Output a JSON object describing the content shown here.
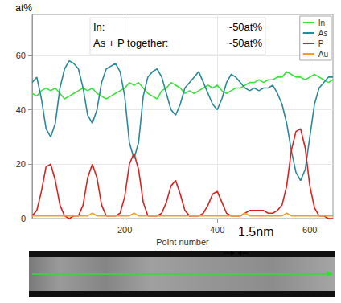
{
  "chart_data": {
    "type": "line",
    "x_label": "Point number",
    "y_label": "at%",
    "x": [
      0,
      10,
      20,
      30,
      40,
      50,
      60,
      70,
      80,
      90,
      100,
      110,
      120,
      130,
      140,
      150,
      160,
      170,
      180,
      190,
      200,
      210,
      220,
      230,
      240,
      250,
      260,
      270,
      280,
      290,
      300,
      310,
      320,
      330,
      340,
      350,
      360,
      370,
      380,
      390,
      400,
      410,
      420,
      430,
      440,
      450,
      460,
      470,
      480,
      490,
      500,
      510,
      520,
      530,
      540,
      550,
      560,
      570,
      580,
      590,
      600,
      610,
      620,
      630,
      640,
      650
    ],
    "series": [
      {
        "name": "In",
        "color": "#3ee03e",
        "values": [
          46,
          45,
          47,
          48,
          47,
          48,
          46,
          44,
          45,
          46,
          47,
          48,
          47,
          48,
          46,
          45,
          44,
          45,
          46,
          47,
          48,
          50,
          49,
          50,
          48,
          46,
          45,
          44,
          47,
          48,
          50,
          49,
          48,
          46,
          47,
          46,
          47,
          48,
          49,
          48,
          49,
          47,
          46,
          47,
          48,
          48,
          49,
          50,
          50,
          51,
          50,
          51,
          51,
          52,
          52,
          54,
          53,
          52,
          52,
          51,
          52,
          53,
          52,
          51,
          50,
          51
        ]
      },
      {
        "name": "As",
        "color": "#2a8a9a",
        "values": [
          50,
          52,
          44,
          33,
          30,
          35,
          48,
          55,
          58,
          57,
          55,
          48,
          38,
          35,
          40,
          50,
          55,
          56,
          57,
          54,
          45,
          28,
          22,
          28,
          45,
          52,
          54,
          55,
          52,
          46,
          40,
          38,
          42,
          48,
          50,
          52,
          54,
          50,
          46,
          42,
          40,
          44,
          50,
          53,
          52,
          50,
          48,
          47,
          48,
          47,
          48,
          48,
          49,
          46,
          42,
          35,
          25,
          17,
          14,
          18,
          30,
          42,
          48,
          50,
          52,
          52
        ]
      },
      {
        "name": "P",
        "color": "#e02020",
        "values": [
          1,
          3,
          10,
          19,
          20,
          14,
          5,
          1,
          0,
          1,
          1,
          5,
          15,
          20,
          15,
          5,
          1,
          1,
          1,
          2,
          8,
          20,
          24,
          18,
          6,
          1,
          1,
          1,
          2,
          6,
          12,
          14,
          9,
          3,
          1,
          1,
          1,
          2,
          5,
          9,
          10,
          6,
          2,
          1,
          1,
          1,
          2,
          3,
          3,
          3,
          3,
          2,
          2,
          3,
          5,
          12,
          25,
          32,
          33,
          26,
          12,
          4,
          1,
          1,
          0,
          0
        ]
      },
      {
        "name": "Au",
        "color": "#f0a020",
        "values": [
          1,
          1,
          1,
          1,
          1,
          1,
          1,
          1,
          1,
          1,
          1,
          1,
          1,
          2,
          1,
          1,
          1,
          1,
          1,
          1,
          1,
          1,
          2,
          1,
          1,
          1,
          1,
          1,
          1,
          1,
          1,
          1,
          1,
          1,
          1,
          1,
          1,
          1,
          1,
          1,
          1,
          1,
          1,
          1,
          1,
          1,
          2,
          1,
          1,
          1,
          1,
          1,
          1,
          1,
          1,
          2,
          1,
          1,
          1,
          1,
          1,
          1,
          1,
          1,
          1,
          1
        ]
      }
    ],
    "xlim": [
      0,
      650
    ],
    "xticks": [
      200,
      400,
      600
    ],
    "ylim": [
      0,
      75
    ],
    "yticks": [
      0,
      20,
      40,
      60
    ],
    "grid": true,
    "legend": "top-right",
    "annotations": [
      [
        "In:",
        "~50at%"
      ],
      [
        "As + P together:",
        "~50at%"
      ]
    ],
    "scale_bar_label": "1.5nm"
  }
}
